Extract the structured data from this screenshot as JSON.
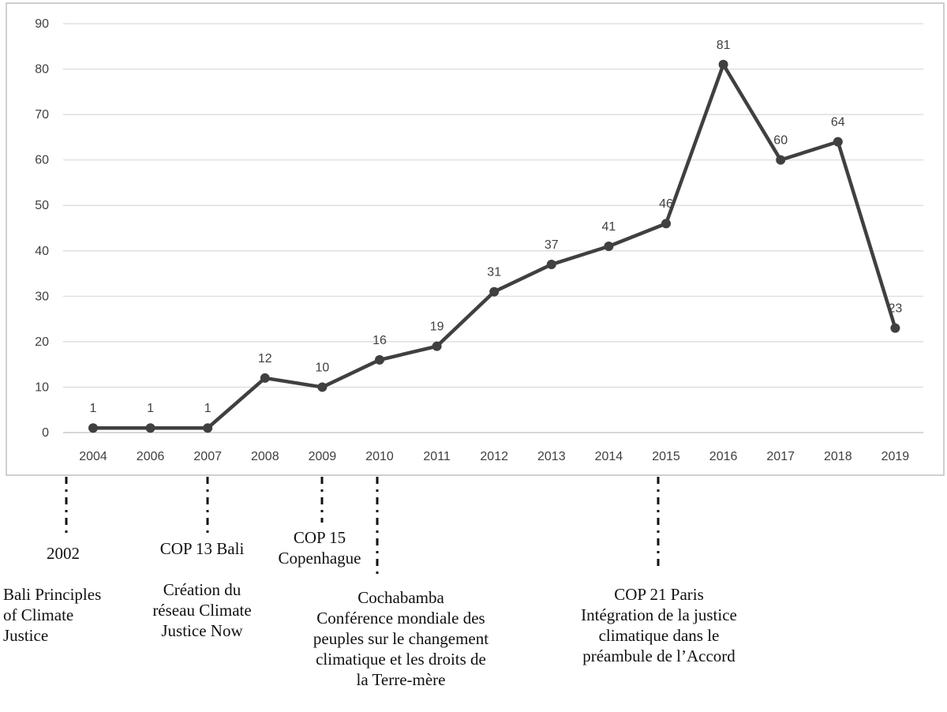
{
  "chart_data": {
    "type": "line",
    "categories": [
      "2004",
      "2006",
      "2007",
      "2008",
      "2009",
      "2010",
      "2011",
      "2012",
      "2013",
      "2014",
      "2015",
      "2016",
      "2017",
      "2018",
      "2019"
    ],
    "values": [
      1,
      1,
      1,
      12,
      10,
      16,
      19,
      31,
      37,
      41,
      46,
      81,
      60,
      64,
      23
    ],
    "data_labels": [
      "1",
      "1",
      "1",
      "12",
      "10",
      "16",
      "19",
      "31",
      "37",
      "41",
      "46",
      "81",
      "60",
      "64",
      "23"
    ],
    "yticks": [
      "0",
      "10",
      "20",
      "30",
      "40",
      "50",
      "60",
      "70",
      "80",
      "90"
    ],
    "ylim": [
      0,
      90
    ],
    "grid": true,
    "line_color": "#404040",
    "grid_color": "#d9d9d9",
    "frame_color": "#bfbfbf"
  },
  "annotations": {
    "bali_principles": {
      "year": "2002",
      "lines": [
        "Bali Principles",
        "of Climate",
        "Justice"
      ]
    },
    "cop13": {
      "title": "COP 13 Bali",
      "lines": [
        "Création du",
        "réseau Climate",
        "Justice Now"
      ]
    },
    "cop15": {
      "lines": [
        "COP 15",
        "Copenhague"
      ]
    },
    "cochabamba": {
      "lines": [
        "Cochabamba",
        "Conférence mondiale des",
        "peuples sur le changement",
        "climatique et les droits de",
        "la Terre-mère"
      ]
    },
    "cop21": {
      "lines": [
        "COP 21 Paris",
        "Intégration de la justice",
        "climatique dans le",
        "préambule de l’Accord"
      ]
    }
  }
}
